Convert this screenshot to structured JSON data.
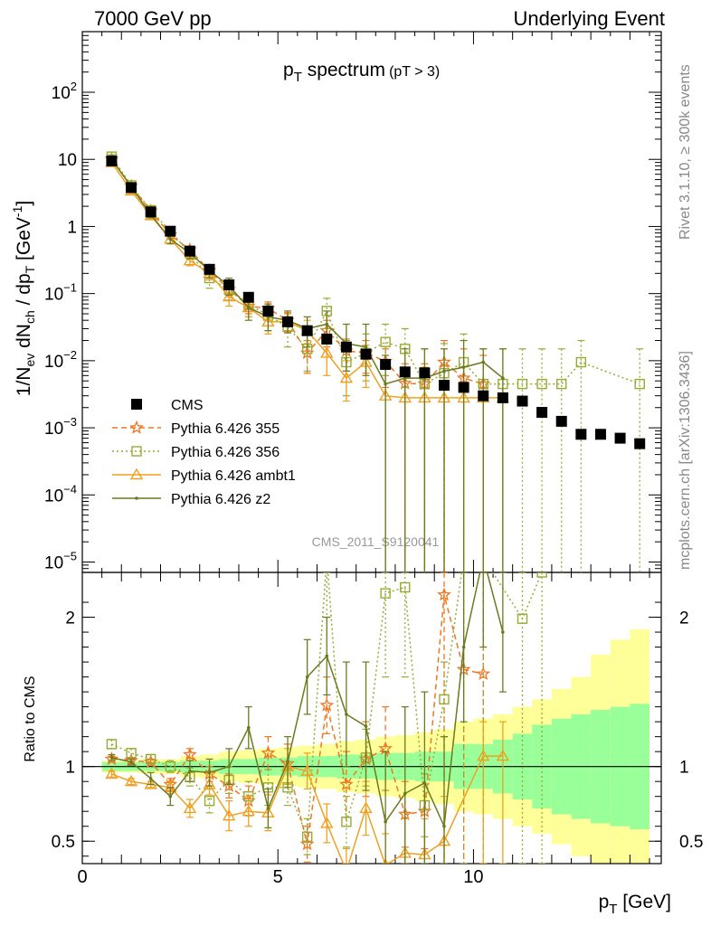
{
  "header": {
    "left": "7000 GeV pp",
    "right": "Underlying Event"
  },
  "side_labels": {
    "rivet": "Rivet 3.1.10, ≥ 300k events",
    "mcplots": "mcplots.cern.ch [arXiv:1306.3436]"
  },
  "colors": {
    "cms": "#000000",
    "p355": "#ee7722",
    "p356": "#99aa33",
    "ambt1": "#f0a020",
    "z2": "#6b7a1e",
    "band_inner": "#99ff99",
    "band_outer": "#ffff99"
  },
  "chart_data": [
    {
      "type": "scatter",
      "panel": "main",
      "title": "p_T spectrum",
      "title_main": "p",
      "title_sub": "T",
      "title_rest": " spectrum",
      "title_note": "(pT >  3)",
      "analysis_label": "CMS_2011_S9120041",
      "ylabel": "1/N_ev dN_ch / dp_T [GeV^-1]",
      "ylabel_parts": [
        "1/N",
        "ev",
        " dN",
        "ch",
        " / dp",
        "T",
        " [GeV",
        "-1",
        "]"
      ],
      "yscale": "log",
      "ylim": [
        7e-06,
        800
      ],
      "xlim": [
        0,
        14.8
      ],
      "yticks": [
        {
          "v": 1e-05,
          "m": "10",
          "e": "−5"
        },
        {
          "v": 0.0001,
          "m": "10",
          "e": "−4"
        },
        {
          "v": 0.001,
          "m": "10",
          "e": "−3"
        },
        {
          "v": 0.01,
          "m": "10",
          "e": "−2"
        },
        {
          "v": 0.1,
          "m": "10",
          "e": "−1"
        },
        {
          "v": 1,
          "m": "1",
          "e": ""
        },
        {
          "v": 10,
          "m": "10",
          "e": ""
        },
        {
          "v": 100,
          "m": "10",
          "e": "2"
        }
      ],
      "legend": [
        {
          "key": "cms",
          "label": "CMS"
        },
        {
          "key": "p355",
          "label": "Pythia 6.426 355"
        },
        {
          "key": "p356",
          "label": "Pythia 6.426 356"
        },
        {
          "key": "ambt1",
          "label": "Pythia 6.426 ambt1"
        },
        {
          "key": "z2",
          "label": "Pythia 6.426 z2"
        }
      ],
      "cms": {
        "x": [
          0.75,
          1.25,
          1.75,
          2.25,
          2.75,
          3.25,
          3.75,
          4.25,
          4.75,
          5.25,
          5.75,
          6.25,
          6.75,
          7.25,
          7.75,
          8.25,
          8.75,
          9.25,
          9.75,
          10.25,
          10.75,
          11.25,
          11.75,
          12.25,
          12.75,
          13.25,
          13.75,
          14.25
        ],
        "y": [
          9.5,
          3.8,
          1.65,
          0.85,
          0.43,
          0.23,
          0.135,
          0.088,
          0.055,
          0.038,
          0.028,
          0.021,
          0.016,
          0.0125,
          0.0088,
          0.0068,
          0.0066,
          0.0043,
          0.004,
          0.003,
          0.0028,
          0.0025,
          0.0017,
          0.00125,
          0.0008,
          0.0008,
          0.0007,
          0.00058
        ]
      },
      "series": [
        {
          "key": "p355",
          "name": "Pythia 6.426 355",
          "marker": "star",
          "dash": "6,4",
          "x": [
            0.75,
            1.25,
            1.75,
            2.25,
            2.75,
            3.25,
            3.75,
            4.25,
            4.75,
            5.25,
            5.75,
            6.25,
            6.75,
            7.25,
            7.75,
            8.25,
            8.75,
            9.25,
            9.75,
            10.25
          ],
          "y": [
            10,
            4.0,
            1.7,
            0.75,
            0.45,
            0.22,
            0.115,
            0.065,
            0.06,
            0.04,
            0.013,
            0.028,
            0.014,
            0.013,
            0.0098,
            0.0046,
            0.0045,
            0.0095,
            0.0055,
            0.0045
          ],
          "up": [
            10.8,
            4.3,
            1.85,
            0.85,
            0.5,
            0.25,
            0.14,
            0.08,
            0.075,
            0.052,
            0.02,
            0.04,
            0.021,
            0.02,
            0.015,
            0.009,
            0.009,
            0.02,
            0.015,
            0.012
          ],
          "lo": [
            9.2,
            3.7,
            1.55,
            0.65,
            0.4,
            0.19,
            0.09,
            0.05,
            0.045,
            0.028,
            0.0065,
            0.016,
            0.007,
            0.0065,
            0.004,
            null,
            null,
            null,
            null,
            null
          ]
        },
        {
          "key": "p356",
          "name": "Pythia 6.426 356",
          "marker": "square",
          "dash": "2,3",
          "x": [
            0.75,
            1.25,
            1.75,
            2.25,
            2.75,
            3.25,
            3.75,
            4.25,
            4.75,
            5.25,
            5.75,
            6.25,
            6.75,
            7.25,
            7.75,
            8.25,
            8.75,
            9.25,
            9.75,
            10.25,
            10.75,
            11.25,
            11.75,
            12.25,
            12.75,
            14.25
          ],
          "y": [
            11,
            4.1,
            1.75,
            0.85,
            0.4,
            0.17,
            0.115,
            0.07,
            0.047,
            0.032,
            0.015,
            0.055,
            0.0095,
            0.013,
            0.019,
            0.015,
            0.0045,
            0.0065,
            0.0095,
            0.0045,
            0.0045,
            0.0045,
            0.0045,
            0.0045,
            0.0095,
            0.0045
          ],
          "up": [
            11.8,
            4.5,
            1.95,
            0.95,
            0.47,
            0.22,
            0.15,
            0.1,
            0.07,
            0.05,
            0.025,
            0.085,
            0.02,
            0.025,
            0.035,
            0.03,
            0.015,
            0.018,
            0.025,
            0.015,
            0.015,
            0.015,
            0.015,
            0.015,
            0.02,
            0.015
          ],
          "lo": [
            10.2,
            3.7,
            1.55,
            0.75,
            0.33,
            0.12,
            0.08,
            0.045,
            0.028,
            0.016,
            0.007,
            0.03,
            0.003,
            0.005,
            0.006,
            0.004,
            null,
            null,
            null,
            null,
            null,
            null,
            null,
            null,
            null,
            null
          ]
        },
        {
          "key": "ambt1",
          "name": "Pythia 6.426 ambt1",
          "marker": "triangle",
          "dash": "",
          "x": [
            0.75,
            1.25,
            1.75,
            2.25,
            2.75,
            3.25,
            3.75,
            4.25,
            4.75,
            5.25,
            5.75,
            6.25,
            6.75,
            7.25,
            7.75,
            8.25,
            8.75,
            9.25,
            9.75,
            10.25,
            10.75
          ],
          "y": [
            9.0,
            3.4,
            1.45,
            0.65,
            0.31,
            0.2,
            0.09,
            0.062,
            0.038,
            0.038,
            0.028,
            0.013,
            0.0055,
            0.0095,
            0.003,
            0.0028,
            0.0028,
            0.0028,
            0.0028,
            0.0028,
            0.0028
          ],
          "up": [
            9.7,
            3.7,
            1.6,
            0.75,
            0.36,
            0.24,
            0.12,
            0.085,
            0.055,
            0.05,
            0.04,
            0.02,
            0.01,
            0.017,
            0.008,
            0.008,
            0.008,
            null,
            null,
            null,
            null
          ],
          "lo": [
            8.3,
            3.1,
            1.3,
            0.56,
            0.26,
            0.16,
            0.065,
            0.045,
            0.025,
            0.027,
            0.018,
            0.006,
            0.0025,
            0.004,
            null,
            null,
            null,
            null,
            null,
            null,
            null
          ]
        },
        {
          "key": "z2",
          "name": "Pythia 6.426 z2",
          "marker": "dot",
          "dash": "",
          "x": [
            0.75,
            1.25,
            1.75,
            2.25,
            2.75,
            3.25,
            3.75,
            4.25,
            4.75,
            5.25,
            5.75,
            6.25,
            6.75,
            7.25,
            7.75,
            8.25,
            8.75,
            9.25,
            9.75,
            10.25,
            10.75
          ],
          "y": [
            10,
            3.9,
            1.5,
            0.65,
            0.4,
            0.22,
            0.13,
            0.062,
            0.045,
            0.04,
            0.03,
            0.035,
            0.018,
            0.016,
            0.0045,
            0.0055,
            0.0055,
            0.007,
            0.008,
            0.0095,
            0.0055
          ],
          "up": [
            10.7,
            4.2,
            1.7,
            0.75,
            0.46,
            0.27,
            0.17,
            0.09,
            0.07,
            0.055,
            0.045,
            0.055,
            0.035,
            0.035,
            0.012,
            0.015,
            0.015,
            0.015,
            0.02,
            0.015,
            0.015
          ],
          "lo": [
            9.3,
            3.6,
            1.35,
            0.55,
            0.33,
            0.17,
            0.095,
            0.04,
            0.028,
            0.026,
            0.016,
            0.018,
            0.007,
            0.006,
            null,
            null,
            null,
            null,
            null,
            null,
            null
          ]
        }
      ]
    },
    {
      "type": "line",
      "panel": "ratio",
      "ylabel": "Ratio to CMS",
      "xlabel_main": "p",
      "xlabel_sub": "T",
      "xlabel_rest": " [GeV]",
      "ylim": [
        0.35,
        2.3
      ],
      "yticks": [
        {
          "v": 0.5,
          "t": "0.5"
        },
        {
          "v": 1,
          "t": "1"
        },
        {
          "v": 2,
          "t": "2"
        }
      ],
      "xticks": [
        {
          "v": 0,
          "t": "0"
        },
        {
          "v": 5,
          "t": "5"
        },
        {
          "v": 10,
          "t": "10"
        }
      ],
      "band_edges": [
        0.5,
        1,
        1.5,
        2,
        2.5,
        3,
        3.5,
        4,
        4.5,
        5,
        5.5,
        6,
        6.5,
        7,
        7.5,
        8,
        8.5,
        9,
        9.5,
        10,
        10.5,
        11,
        11.5,
        12,
        12.5,
        13,
        13.5,
        14,
        14.5
      ],
      "band_inner": [
        0.03,
        0.03,
        0.03,
        0.03,
        0.04,
        0.04,
        0.05,
        0.05,
        0.06,
        0.06,
        0.07,
        0.07,
        0.08,
        0.08,
        0.09,
        0.09,
        0.1,
        0.1,
        0.15,
        0.15,
        0.18,
        0.22,
        0.28,
        0.32,
        0.35,
        0.38,
        0.4,
        0.42
      ],
      "band_outer": [
        0.04,
        0.04,
        0.05,
        0.05,
        0.07,
        0.08,
        0.1,
        0.11,
        0.12,
        0.13,
        0.14,
        0.15,
        0.17,
        0.18,
        0.2,
        0.21,
        0.23,
        0.25,
        0.3,
        0.32,
        0.35,
        0.4,
        0.45,
        0.52,
        0.6,
        0.75,
        0.85,
        0.92
      ],
      "series": [
        {
          "key": "p355",
          "name": "Pythia 6.426 355",
          "marker": "star",
          "dash": "6,4",
          "x": [
            0.75,
            1.25,
            1.75,
            2.25,
            2.75,
            3.25,
            3.75,
            4.25,
            4.75,
            5.25,
            5.75,
            6.25,
            6.75,
            7.25,
            7.75,
            8.25,
            8.75,
            9.25,
            9.75,
            10.25
          ],
          "y": [
            1.05,
            1.04,
            1.03,
            0.88,
            1.08,
            0.95,
            0.87,
            0.77,
            1.09,
            1.02,
            0.48,
            1.41,
            0.88,
            1.05,
            1.12,
            0.68,
            0.7,
            2.15,
            1.65,
            1.62
          ],
          "up": [
            1.07,
            1.06,
            1.05,
            0.92,
            1.12,
            1.0,
            0.95,
            0.87,
            1.2,
            1.15,
            0.6,
            1.6,
            1.1,
            1.3,
            1.4,
            0.9,
            0.95,
            2.3,
            2.3,
            2.3
          ],
          "lo": [
            1.03,
            1.02,
            1.01,
            0.84,
            1.04,
            0.9,
            0.79,
            0.67,
            0.98,
            0.89,
            0.36,
            1.22,
            0.66,
            0.8,
            0.84,
            0.46,
            0.45,
            0.35,
            0.35,
            0.35
          ]
        },
        {
          "key": "p356",
          "name": "Pythia 6.426 356",
          "marker": "square",
          "dash": "2,3",
          "x": [
            0.75,
            1.25,
            1.75,
            2.25,
            2.75,
            3.25,
            3.75,
            4.25,
            4.75,
            5.25,
            5.75,
            6.25,
            6.75,
            7.25,
            7.75,
            8.25,
            8.75,
            9.25,
            9.75,
            10.25,
            11.25,
            11.75
          ],
          "y": [
            1.15,
            1.09,
            1.05,
            1.0,
            0.93,
            0.77,
            0.91,
            0.8,
            0.86,
            0.86,
            0.53,
            2.6,
            0.63,
            1.06,
            2.16,
            2.2,
            0.74,
            1.45,
            2.4,
            2.6,
            1.99,
            2.3
          ],
          "up": [
            1.18,
            1.12,
            1.08,
            1.04,
            0.99,
            0.85,
            1.0,
            0.9,
            0.98,
            0.98,
            0.65,
            2.3,
            0.8,
            1.25,
            2.3,
            2.3,
            0.95,
            1.7,
            2.3,
            2.3,
            2.3,
            2.3
          ],
          "lo": [
            1.12,
            1.06,
            1.02,
            0.96,
            0.87,
            0.69,
            0.82,
            0.7,
            0.74,
            0.74,
            0.41,
            2.0,
            0.46,
            0.87,
            1.6,
            1.6,
            0.53,
            1.2,
            0.35,
            0.35,
            0.35,
            0.35
          ]
        },
        {
          "key": "ambt1",
          "name": "Pythia 6.426 ambt1",
          "marker": "triangle",
          "dash": "",
          "x": [
            0.75,
            1.25,
            1.75,
            2.25,
            2.75,
            3.25,
            3.75,
            4.25,
            4.75,
            5.25,
            5.75,
            6.25,
            6.75,
            7.25,
            7.75,
            8.25,
            8.75,
            9.25,
            10.25,
            10.75
          ],
          "y": [
            0.95,
            0.9,
            0.88,
            0.86,
            0.72,
            0.88,
            0.67,
            0.7,
            0.69,
            1.0,
            0.97,
            0.62,
            0.3,
            0.72,
            0.34,
            0.42,
            0.41,
            0.5,
            1.07,
            1.07
          ],
          "up": [
            0.97,
            0.92,
            0.9,
            0.9,
            0.78,
            0.95,
            0.77,
            0.8,
            0.81,
            1.12,
            1.09,
            0.75,
            0.45,
            0.9,
            0.55,
            0.65,
            0.65,
            0.8,
            1.3,
            1.3
          ],
          "lo": [
            0.93,
            0.88,
            0.86,
            0.82,
            0.66,
            0.81,
            0.57,
            0.6,
            0.57,
            0.88,
            0.85,
            0.49,
            0.35,
            0.54,
            0.35,
            0.35,
            0.35,
            0.35,
            0.35,
            0.35
          ]
        },
        {
          "key": "z2",
          "name": "Pythia 6.426 z2",
          "marker": "dot",
          "dash": "",
          "x": [
            0.75,
            1.25,
            1.75,
            2.25,
            2.75,
            3.25,
            3.75,
            4.25,
            4.75,
            5.25,
            5.75,
            6.25,
            6.75,
            7.25,
            7.75,
            8.25,
            8.75,
            9.25,
            9.75,
            10.25,
            10.75
          ],
          "y": [
            1.06,
            1.03,
            0.92,
            0.8,
            0.97,
            0.96,
            1.0,
            1.26,
            0.72,
            1.03,
            1.6,
            1.74,
            1.35,
            1.27,
            0.63,
            0.82,
            0.89,
            0.6,
            1.8,
            2.4,
            1.9
          ],
          "up": [
            1.08,
            1.05,
            0.96,
            0.86,
            1.04,
            1.05,
            1.12,
            1.4,
            0.85,
            1.2,
            1.85,
            2.0,
            1.7,
            1.7,
            1.1,
            1.4,
            1.5,
            1.2,
            2.3,
            2.3,
            2.3
          ],
          "lo": [
            1.04,
            1.01,
            0.88,
            0.74,
            0.9,
            0.87,
            0.88,
            1.12,
            0.59,
            0.86,
            1.35,
            1.48,
            1.0,
            0.84,
            0.35,
            0.35,
            0.35,
            0.35,
            1.3,
            1.8,
            1.5
          ]
        }
      ]
    }
  ]
}
